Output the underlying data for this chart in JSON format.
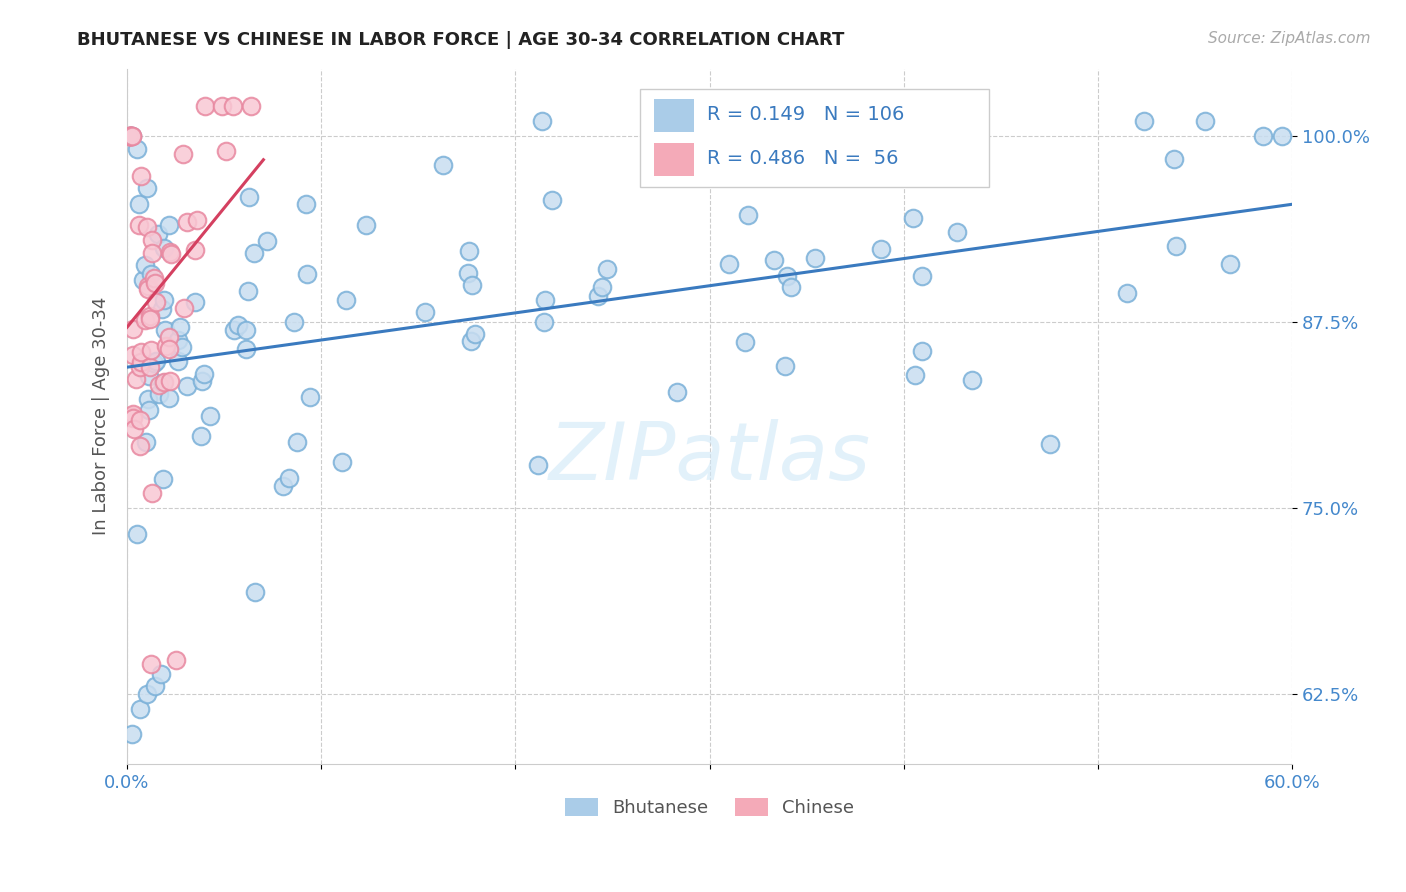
{
  "title": "BHUTANESE VS CHINESE IN LABOR FORCE | AGE 30-34 CORRELATION CHART",
  "source": "Source: ZipAtlas.com",
  "ylabel": "In Labor Force | Age 30-34",
  "r_bhutanese": 0.149,
  "n_bhutanese": 106,
  "r_chinese": 0.486,
  "n_chinese": 56,
  "blue_line_color": "#3a7abf",
  "pink_line_color": "#d44060",
  "dot_blue_edge": "#7ab0d8",
  "dot_pink_edge": "#e888a0",
  "dot_blue_face": "#c8ddf0",
  "dot_pink_face": "#f8c8d4",
  "legend_blue_face": "#aacce8",
  "legend_pink_face": "#f4aab8",
  "title_color": "#222222",
  "axis_color": "#4488cc",
  "source_color": "#aaaaaa",
  "text_blue": "#3a7abf",
  "text_pink": "#d44060",
  "xlim": [
    0.0,
    0.6
  ],
  "ylim": [
    0.578,
    1.045
  ],
  "yticks": [
    0.625,
    0.75,
    0.875,
    1.0
  ],
  "ytick_labels": [
    "62.5%",
    "75.0%",
    "87.5%",
    "100.0%"
  ],
  "xticks": [
    0.0,
    0.1,
    0.2,
    0.3,
    0.4,
    0.5,
    0.6
  ],
  "xtick_labels": [
    "0.0%",
    "",
    "",
    "",
    "",
    "",
    "60.0%"
  ],
  "grid_color": "#cccccc",
  "watermark": "ZIPatlas",
  "watermark_color": "#d0e8f8"
}
